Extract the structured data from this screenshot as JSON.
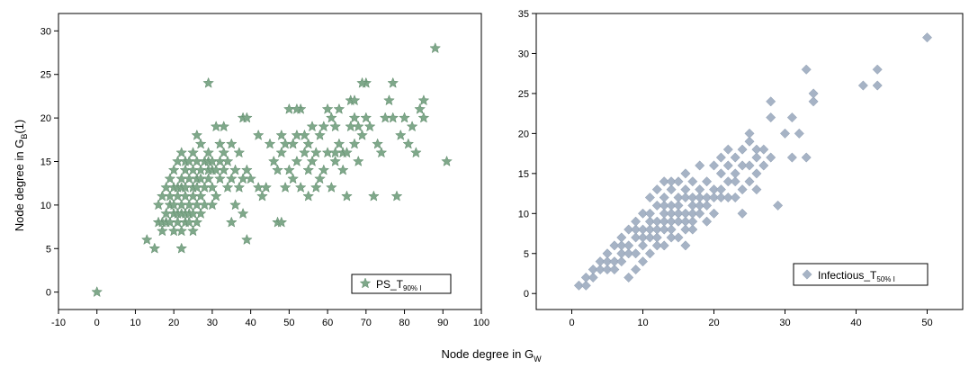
{
  "figure": {
    "shared_xlabel": "Node degree in G",
    "shared_xlabel_sub": "W"
  },
  "chart_data": [
    {
      "type": "scatter",
      "title": "",
      "xlabel": "",
      "ylabel": "Node degree in G",
      "ylabel_sub": "B",
      "ylabel_suffix": "(1)",
      "xlim": [
        -10,
        100
      ],
      "ylim": [
        -2,
        32
      ],
      "xticks": [
        -10,
        0,
        10,
        20,
        30,
        40,
        50,
        60,
        70,
        80,
        90,
        100
      ],
      "yticks": [
        0,
        5,
        10,
        15,
        20,
        25,
        30
      ],
      "grid": false,
      "legend_position": "bottom-right",
      "series": [
        {
          "name": "PS_T",
          "name_sub": "90% I",
          "marker": "star",
          "color": "#7fa88a",
          "x": [
            0,
            13,
            15,
            16,
            16,
            17,
            17,
            17,
            18,
            18,
            18,
            19,
            19,
            19,
            19,
            20,
            20,
            20,
            20,
            20,
            21,
            21,
            21,
            21,
            21,
            22,
            22,
            22,
            22,
            22,
            22,
            22,
            23,
            23,
            23,
            23,
            23,
            23,
            24,
            24,
            24,
            24,
            24,
            25,
            25,
            25,
            25,
            25,
            25,
            26,
            26,
            26,
            26,
            26,
            26,
            27,
            27,
            27,
            27,
            27,
            28,
            28,
            28,
            29,
            29,
            29,
            29,
            30,
            30,
            30,
            30,
            31,
            31,
            31,
            32,
            32,
            32,
            33,
            33,
            33,
            34,
            34,
            35,
            35,
            35,
            36,
            36,
            37,
            37,
            38,
            38,
            38,
            39,
            39,
            39,
            40,
            42,
            43,
            44,
            45,
            46,
            47,
            47,
            48,
            48,
            49,
            49,
            50,
            50,
            51,
            51,
            52,
            52,
            53,
            53,
            54,
            54,
            55,
            55,
            55,
            56,
            56,
            57,
            57,
            58,
            58,
            59,
            59,
            60,
            60,
            61,
            61,
            62,
            62,
            63,
            63,
            64,
            64,
            65,
            65,
            66,
            66,
            67,
            67,
            68,
            68,
            69,
            70,
            70,
            71,
            72,
            73,
            74,
            75,
            76,
            77,
            77,
            78,
            79,
            80,
            81,
            82,
            83,
            84,
            85,
            85,
            88,
            91,
            29,
            42,
            48,
            52,
            62,
            67,
            69
          ],
          "y": [
            0,
            6,
            5,
            8,
            10,
            7,
            8,
            11,
            8,
            9,
            12,
            8,
            10,
            11,
            13,
            7,
            9,
            10,
            12,
            14,
            8,
            9,
            11,
            12,
            15,
            5,
            7,
            9,
            10,
            12,
            13,
            16,
            8,
            9,
            11,
            12,
            14,
            15,
            8,
            9,
            10,
            13,
            15,
            7,
            9,
            11,
            12,
            14,
            16,
            8,
            10,
            12,
            13,
            15,
            18,
            9,
            11,
            13,
            14,
            17,
            10,
            12,
            15,
            13,
            14,
            15,
            16,
            10,
            12,
            14,
            15,
            11,
            14,
            19,
            13,
            15,
            17,
            14,
            16,
            19,
            12,
            15,
            8,
            13,
            17,
            10,
            14,
            12,
            16,
            9,
            13,
            20,
            6,
            14,
            20,
            13,
            12,
            11,
            12,
            17,
            15,
            14,
            8,
            16,
            18,
            12,
            17,
            14,
            21,
            13,
            17,
            15,
            18,
            12,
            21,
            16,
            18,
            11,
            14,
            17,
            15,
            19,
            12,
            16,
            13,
            18,
            14,
            19,
            16,
            21,
            12,
            20,
            15,
            19,
            17,
            21,
            14,
            16,
            11,
            16,
            19,
            22,
            17,
            20,
            15,
            19,
            18,
            20,
            24,
            19,
            11,
            17,
            16,
            20,
            22,
            24,
            20,
            11,
            18,
            20,
            17,
            19,
            16,
            21,
            20,
            22,
            28,
            15,
            24,
            18,
            8,
            21,
            16,
            22,
            24
          ]
        }
      ]
    },
    {
      "type": "scatter",
      "title": "",
      "xlabel": "",
      "ylabel": "",
      "xlim": [
        -5,
        55
      ],
      "ylim": [
        -2,
        35
      ],
      "xticks": [
        0,
        10,
        20,
        30,
        40,
        50
      ],
      "yticks": [
        0,
        5,
        10,
        15,
        20,
        25,
        30,
        35
      ],
      "grid": false,
      "legend_position": "bottom-right",
      "series": [
        {
          "name": "Infectious_T",
          "name_sub": "50% I",
          "marker": "diamond",
          "color": "#a6b3c5",
          "x": [
            1,
            2,
            2,
            3,
            3,
            4,
            4,
            5,
            5,
            5,
            6,
            6,
            6,
            7,
            7,
            7,
            7,
            8,
            8,
            8,
            8,
            9,
            9,
            9,
            9,
            9,
            10,
            10,
            10,
            10,
            10,
            11,
            11,
            11,
            11,
            11,
            11,
            12,
            12,
            12,
            12,
            12,
            12,
            13,
            13,
            13,
            13,
            13,
            13,
            13,
            14,
            14,
            14,
            14,
            14,
            14,
            14,
            15,
            15,
            15,
            15,
            15,
            15,
            16,
            16,
            16,
            16,
            16,
            16,
            16,
            17,
            17,
            17,
            17,
            17,
            17,
            18,
            18,
            18,
            18,
            18,
            19,
            19,
            19,
            19,
            20,
            20,
            20,
            20,
            21,
            21,
            21,
            21,
            22,
            22,
            22,
            22,
            23,
            23,
            23,
            23,
            24,
            24,
            24,
            24,
            25,
            25,
            25,
            25,
            26,
            26,
            26,
            26,
            27,
            27,
            28,
            28,
            28,
            29,
            30,
            31,
            31,
            32,
            33,
            33,
            34,
            34,
            41,
            43,
            43,
            50
          ],
          "y": [
            1,
            1,
            2,
            2,
            3,
            3,
            4,
            3,
            4,
            5,
            3,
            4,
            6,
            4,
            5,
            6,
            7,
            2,
            5,
            6,
            8,
            3,
            5,
            7,
            8,
            9,
            4,
            6,
            7,
            8,
            10,
            5,
            7,
            8,
            9,
            10,
            12,
            6,
            7,
            8,
            9,
            11,
            13,
            6,
            8,
            9,
            10,
            11,
            12,
            14,
            7,
            8,
            9,
            10,
            11,
            13,
            14,
            7,
            9,
            10,
            11,
            12,
            14,
            6,
            8,
            9,
            10,
            12,
            13,
            15,
            8,
            9,
            10,
            11,
            12,
            14,
            10,
            11,
            12,
            13,
            16,
            9,
            11,
            12,
            14,
            10,
            12,
            13,
            16,
            12,
            13,
            15,
            17,
            12,
            14,
            16,
            18,
            12,
            14,
            15,
            17,
            10,
            13,
            16,
            18,
            14,
            16,
            19,
            20,
            13,
            15,
            17,
            18,
            16,
            18,
            17,
            22,
            24,
            11,
            20,
            17,
            22,
            20,
            17,
            28,
            24,
            25,
            26,
            26,
            28,
            32
          ]
        }
      ]
    }
  ]
}
